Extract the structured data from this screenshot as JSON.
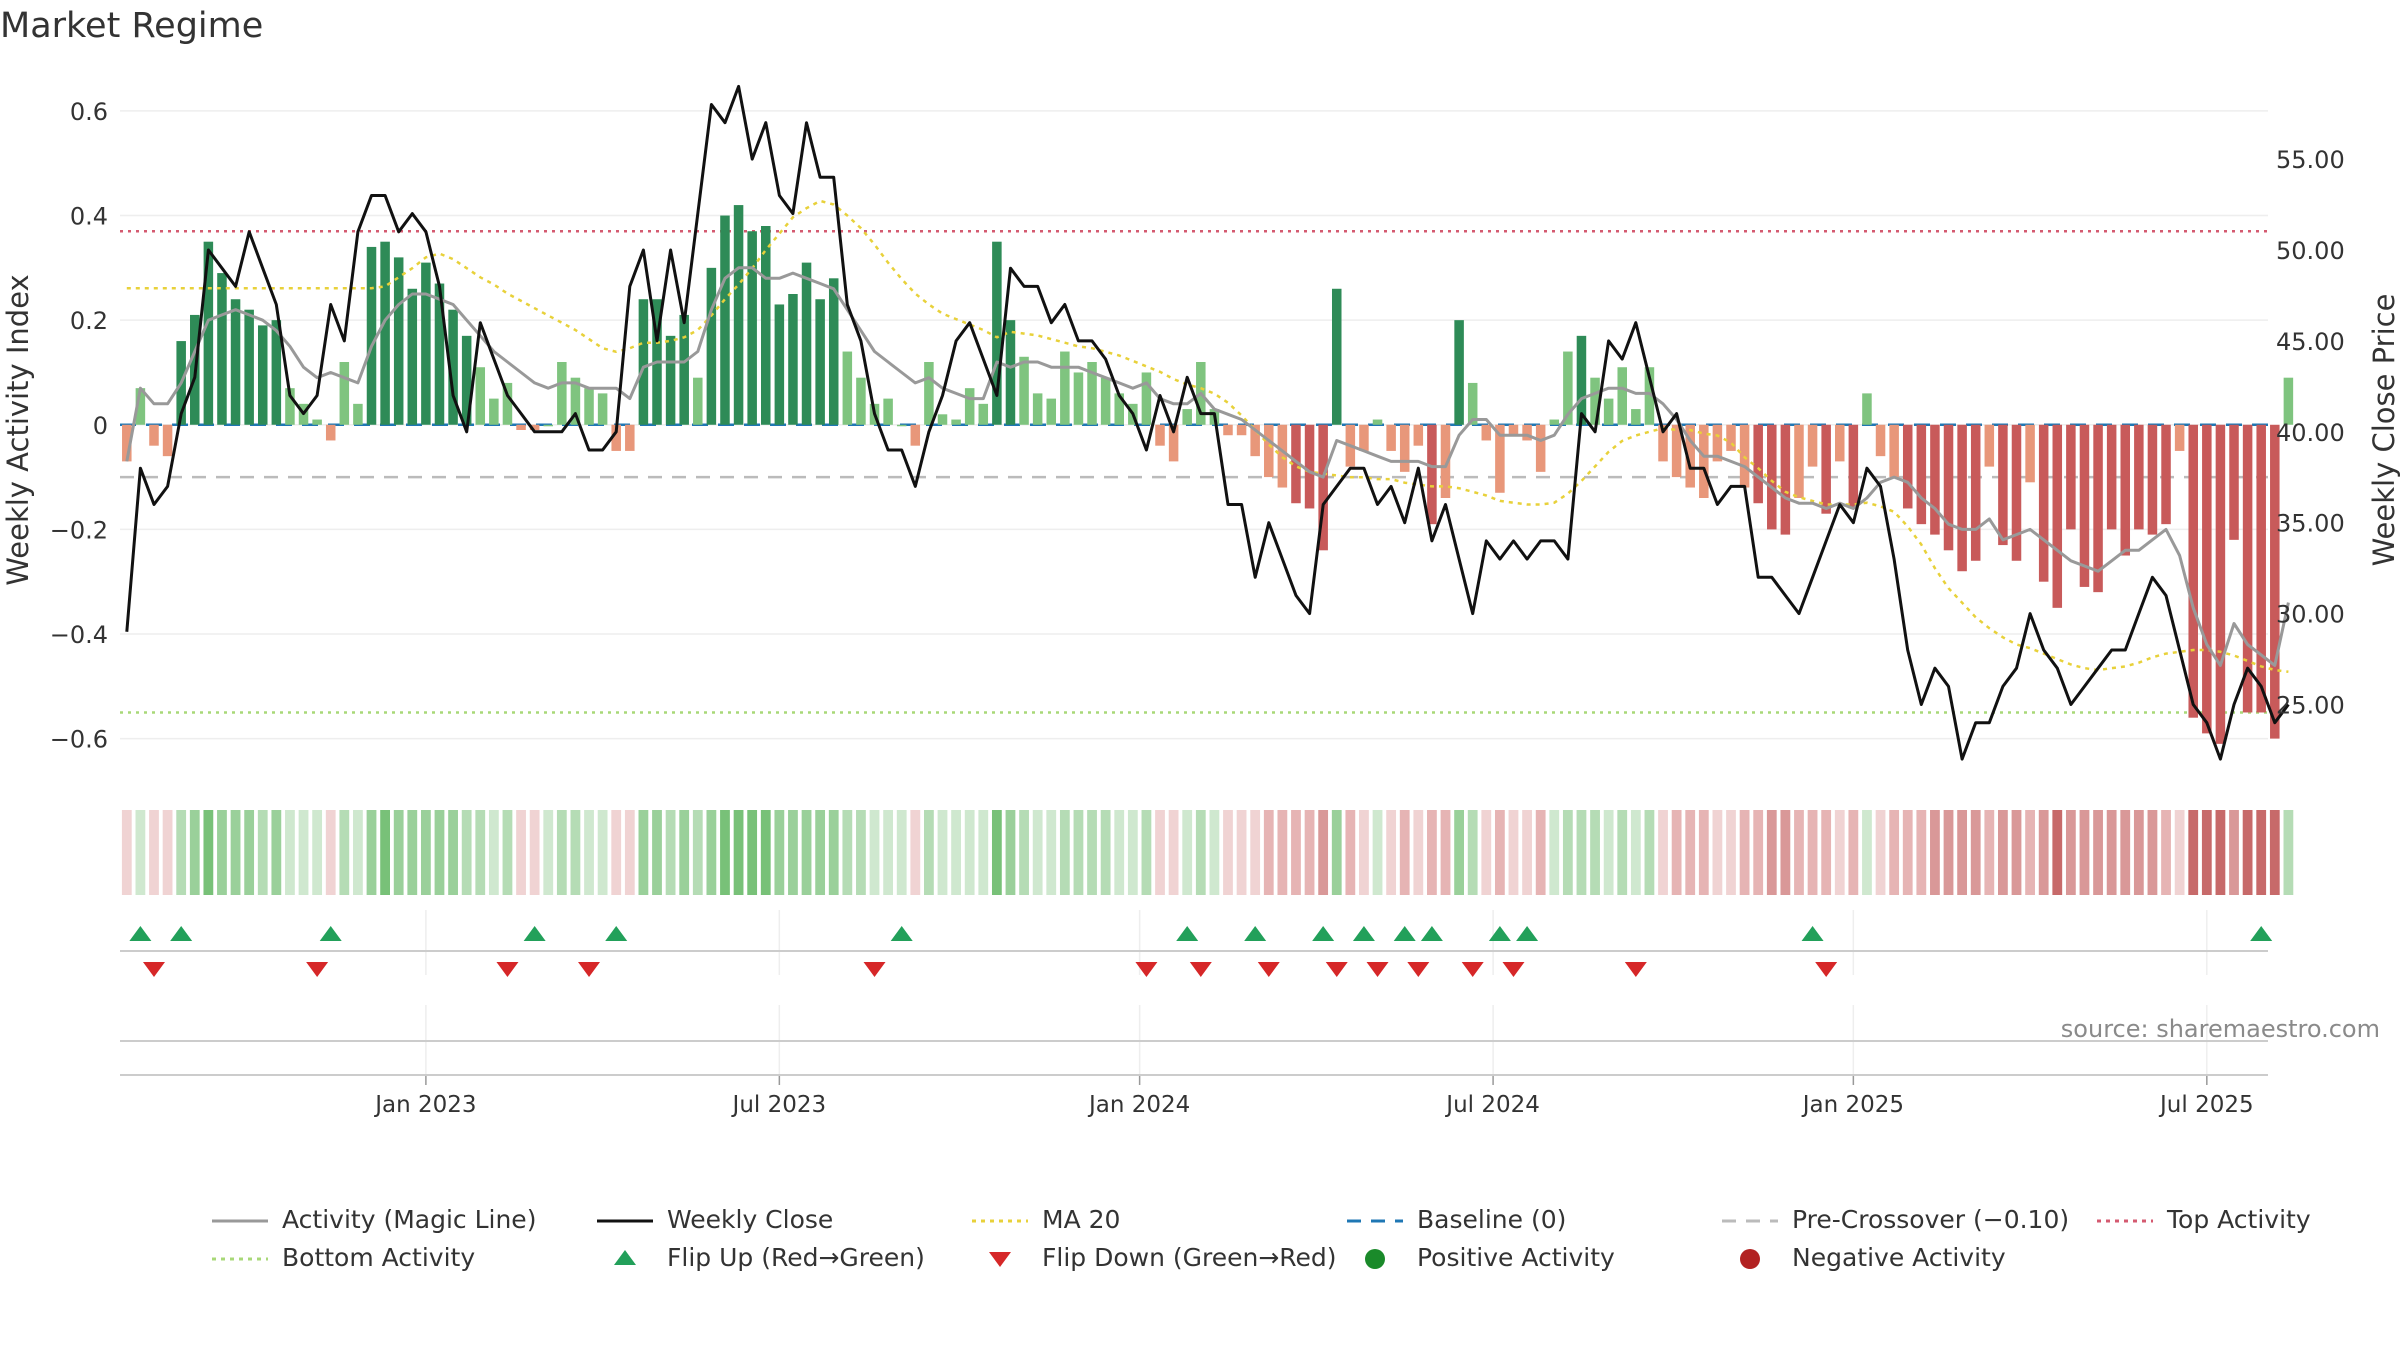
{
  "chart_data": {
    "type": "bar",
    "title": "Market Regime",
    "source": "source: sharemaestro.com",
    "ylabel_left": "Weekly Activity Index",
    "ylabel_right": "Weekly Close Price",
    "left_axis": {
      "ylim": [
        -0.66,
        0.64
      ],
      "ticks": [
        "0.6",
        "0.4",
        "0.2",
        "0",
        "−0.2",
        "−0.4",
        "−0.6"
      ],
      "tick_values": [
        0.6,
        0.4,
        0.2,
        0,
        -0.2,
        -0.4,
        -0.6
      ]
    },
    "right_axis": {
      "ylim": [
        21.4,
        58.8
      ],
      "ticks": [
        "55.00",
        "50.00",
        "45.00",
        "40.00",
        "35.00",
        "30.00",
        "25.00"
      ],
      "tick_values": [
        55,
        50,
        45,
        40,
        35,
        30,
        25
      ]
    },
    "x_ticks": [
      {
        "label": "Jan 2023",
        "week": 22
      },
      {
        "label": "Jul 2023",
        "week": 48
      },
      {
        "label": "Jan 2024",
        "week": 74.5
      },
      {
        "label": "Jul 2024",
        "week": 100.5
      },
      {
        "label": "Jan 2025",
        "week": 127
      },
      {
        "label": "Jul 2025",
        "week": 153
      }
    ],
    "weeks": 158,
    "reference_lines": {
      "top_activity": 0.37,
      "bottom_activity": -0.55,
      "pre_crossover": -0.1,
      "baseline": 0
    },
    "activity": [
      -0.07,
      0.07,
      -0.04,
      -0.06,
      0.16,
      0.21,
      0.35,
      0.29,
      0.24,
      0.22,
      0.19,
      0.2,
      0.07,
      0.04,
      0.01,
      -0.03,
      0.12,
      0.04,
      0.34,
      0.35,
      0.32,
      0.26,
      0.31,
      0.27,
      0.22,
      0.17,
      0.11,
      0.05,
      0.08,
      -0.01,
      -0.01,
      0,
      0.12,
      0.09,
      0.07,
      0.06,
      -0.05,
      -0.05,
      0.24,
      0.24,
      0.17,
      0.21,
      0.09,
      0.3,
      0.4,
      0.42,
      0.37,
      0.38,
      0.23,
      0.25,
      0.31,
      0.24,
      0.28,
      0.14,
      0.09,
      0.04,
      0.05,
      0,
      -0.04,
      0.12,
      0.02,
      0.01,
      0.07,
      0.04,
      0.35,
      0.2,
      0.13,
      0.06,
      0.05,
      0.14,
      0.1,
      0.12,
      0.09,
      0.06,
      0.04,
      0.1,
      -0.04,
      -0.07,
      0.03,
      0.12,
      0.03,
      -0.02,
      -0.02,
      -0.06,
      -0.1,
      -0.12,
      -0.15,
      -0.16,
      -0.24,
      0.26,
      -0.08,
      -0.05,
      0.01,
      -0.05,
      -0.09,
      -0.04,
      -0.19,
      -0.14,
      0.2,
      0.08,
      -0.03,
      -0.13,
      -0.02,
      -0.03,
      -0.09,
      0.01,
      0.14,
      0.17,
      0.09,
      0.05,
      0.11,
      0.03,
      0.11,
      -0.07,
      -0.1,
      -0.12,
      -0.14,
      -0.07,
      -0.05,
      -0.12,
      -0.15,
      -0.2,
      -0.21,
      -0.14,
      -0.08,
      -0.17,
      -0.07,
      -0.16,
      0.06,
      -0.06,
      -0.1,
      -0.16,
      -0.19,
      -0.21,
      -0.24,
      -0.28,
      -0.26,
      -0.08,
      -0.23,
      -0.26,
      -0.11,
      -0.3,
      -0.35,
      -0.2,
      -0.31,
      -0.32,
      -0.2,
      -0.25,
      -0.2,
      -0.21,
      -0.19,
      -0.05,
      -0.56,
      -0.59,
      -0.61,
      -0.22,
      -0.55,
      -0.55,
      -0.6,
      0.09
    ],
    "close": [
      29,
      38,
      36,
      37,
      41,
      43,
      50,
      49,
      48,
      51,
      49,
      47,
      42,
      41,
      42,
      47,
      45,
      51,
      53,
      53,
      51,
      52,
      51,
      48,
      42,
      40,
      46,
      44,
      42,
      41,
      40,
      40,
      40,
      41,
      39,
      39,
      40,
      48,
      50,
      45,
      50,
      46,
      52,
      58,
      57,
      59,
      55,
      57,
      53,
      52,
      57,
      54,
      54,
      47,
      45,
      41,
      39,
      39,
      37,
      40,
      42,
      45,
      46,
      44,
      42,
      49,
      48,
      48,
      46,
      47,
      45,
      45,
      44,
      42,
      41,
      39,
      42,
      40,
      43,
      41,
      41,
      36,
      36,
      32,
      35,
      33,
      31,
      30,
      36,
      37,
      38,
      38,
      36,
      37,
      35,
      38,
      34,
      36,
      33,
      30,
      34,
      33,
      34,
      33,
      34,
      34,
      33,
      41,
      40,
      45,
      44,
      46,
      43,
      40,
      41,
      38,
      38,
      36,
      37,
      37,
      32,
      32,
      31,
      30,
      32,
      34,
      36,
      35,
      38,
      37,
      33,
      28,
      25,
      27,
      26,
      22,
      24,
      24,
      26,
      27,
      30,
      28,
      27,
      25,
      26,
      27,
      28,
      28,
      30,
      32,
      31,
      28,
      25,
      24,
      22,
      25,
      27,
      26,
      24,
      25
    ],
    "magic_line": [
      -0.07,
      0.07,
      0.04,
      0.04,
      0.08,
      0.14,
      0.2,
      0.21,
      0.22,
      0.21,
      0.2,
      0.18,
      0.15,
      0.11,
      0.09,
      0.1,
      0.09,
      0.08,
      0.15,
      0.2,
      0.23,
      0.25,
      0.25,
      0.24,
      0.23,
      0.2,
      0.17,
      0.14,
      0.12,
      0.1,
      0.08,
      0.07,
      0.08,
      0.08,
      0.07,
      0.07,
      0.07,
      0.05,
      0.11,
      0.12,
      0.12,
      0.12,
      0.14,
      0.22,
      0.28,
      0.3,
      0.3,
      0.28,
      0.28,
      0.29,
      0.28,
      0.27,
      0.26,
      0.22,
      0.18,
      0.14,
      0.12,
      0.1,
      0.08,
      0.09,
      0.07,
      0.06,
      0.05,
      0.05,
      0.12,
      0.11,
      0.12,
      0.12,
      0.11,
      0.11,
      0.11,
      0.1,
      0.09,
      0.08,
      0.07,
      0.08,
      0.05,
      0.04,
      0.04,
      0.06,
      0.03,
      0.02,
      0.01,
      -0.01,
      -0.03,
      -0.05,
      -0.07,
      -0.09,
      -0.1,
      -0.03,
      -0.04,
      -0.05,
      -0.06,
      -0.07,
      -0.07,
      -0.07,
      -0.08,
      -0.08,
      -0.02,
      0.01,
      0.01,
      -0.02,
      -0.02,
      -0.02,
      -0.03,
      -0.02,
      0.02,
      0.05,
      0.06,
      0.07,
      0.07,
      0.06,
      0.06,
      0.04,
      0.01,
      -0.03,
      -0.06,
      -0.06,
      -0.07,
      -0.08,
      -0.1,
      -0.12,
      -0.14,
      -0.15,
      -0.15,
      -0.16,
      -0.15,
      -0.16,
      -0.14,
      -0.11,
      -0.1,
      -0.11,
      -0.14,
      -0.16,
      -0.19,
      -0.2,
      -0.2,
      -0.18,
      -0.22,
      -0.21,
      -0.2,
      -0.22,
      -0.24,
      -0.26,
      -0.27,
      -0.28,
      -0.26,
      -0.24,
      -0.24,
      -0.22,
      -0.2,
      -0.25,
      -0.35,
      -0.42,
      -0.46,
      -0.38,
      -0.42,
      -0.44,
      -0.46,
      -0.34
    ],
    "ma20_close": [
      47.9,
      47.9,
      47.9,
      47.9,
      47.9,
      47.9,
      47.9,
      47.9,
      47.9,
      47.9,
      47.9,
      47.9,
      47.9,
      47.9,
      47.9,
      47.9,
      47.9,
      47.9,
      47.9,
      48,
      48.5,
      49,
      49.6,
      49.8,
      49.5,
      49,
      48.5,
      48.1,
      47.6,
      47.2,
      46.8,
      46.4,
      46,
      45.6,
      45.1,
      44.6,
      44.4,
      44.6,
      44.9,
      44.9,
      45,
      45.2,
      45.6,
      46.4,
      47.3,
      48.1,
      49,
      50,
      50.9,
      51.8,
      52.3,
      52.7,
      52.5,
      51.9,
      51.2,
      50.3,
      49.3,
      48.4,
      47.6,
      47,
      46.5,
      46.2,
      45.9,
      45.6,
      45.2,
      45.5,
      45.4,
      45.3,
      45.1,
      44.9,
      44.7,
      44.6,
      44.4,
      44.2,
      43.9,
      43.6,
      43.3,
      42.9,
      42.6,
      42.4,
      42.1,
      41.6,
      40.9,
      40.1,
      39.3,
      38.6,
      38.1,
      37.8,
      37.7,
      37.6,
      37.5,
      37.5,
      37.4,
      37.4,
      37.2,
      37.1,
      37,
      37,
      36.9,
      36.7,
      36.5,
      36.2,
      36.1,
      36,
      36,
      36.1,
      36.6,
      37.3,
      38.1,
      38.9,
      39.5,
      39.8,
      40,
      40.2,
      40.1,
      40.1,
      39.9,
      39.8,
      39.4,
      38.6,
      38,
      37.3,
      36.7,
      36.4,
      36.2,
      36,
      36,
      36,
      36.1,
      35.9,
      35.6,
      34.8,
      33.8,
      32.5,
      31.4,
      30.6,
      29.8,
      29.2,
      28.7,
      28.3,
      28.1,
      27.8,
      27.5,
      27.2,
      27,
      26.9,
      27,
      27.1,
      27.3,
      27.6,
      27.8,
      27.9,
      28,
      28,
      27.9,
      27.7,
      27.4,
      27.1,
      26.9,
      26.8
    ],
    "flip_up_weeks": [
      1,
      4,
      15,
      30,
      36,
      57,
      78,
      83,
      88,
      91,
      94,
      96,
      101,
      103,
      124,
      157
    ],
    "flip_down_weeks": [
      2,
      14,
      28,
      34,
      55,
      75,
      79,
      84,
      89,
      92,
      95,
      99,
      102,
      111,
      125
    ],
    "legend": [
      {
        "label": "Activity (Magic Line)",
        "marker": "line",
        "color": "#999999"
      },
      {
        "label": "Weekly Close",
        "marker": "line",
        "color": "#111111"
      },
      {
        "label": "MA 20",
        "marker": "dotted-line",
        "color": "#e8d13a"
      },
      {
        "label": "Baseline (0)",
        "marker": "dashed-line",
        "color": "#1f77b4"
      },
      {
        "label": "Pre-Crossover (−0.10)",
        "marker": "dashed-line",
        "color": "#bbbbbb"
      },
      {
        "label": "Top Activity",
        "marker": "dotted-line",
        "color": "#d45a70"
      },
      {
        "label": "Bottom Activity",
        "marker": "dotted-line",
        "color": "#a8d878"
      },
      {
        "label": "Flip Up (Red→Green)",
        "marker": "triangle-up",
        "color": "#22a05a"
      },
      {
        "label": "Flip Down (Green→Red)",
        "marker": "triangle-down",
        "color": "#d62728"
      },
      {
        "label": "Positive Activity",
        "marker": "circle",
        "color": "#1a8a2a"
      },
      {
        "label": "Negative Activity",
        "marker": "circle",
        "color": "#b22222"
      }
    ],
    "colors": {
      "pos_strong": "#2e8b57",
      "pos_light": "#7fc47f",
      "neg_strong": "#c85a5a",
      "neg_light": "#e8977a",
      "ribbon_pos": [
        "#cfe8cf",
        "#b5dcb5",
        "#9ad09a",
        "#78c178"
      ],
      "ribbon_neg": [
        "#f0d3d3",
        "#e6b4b4",
        "#d99898",
        "#c76a6a"
      ]
    }
  }
}
